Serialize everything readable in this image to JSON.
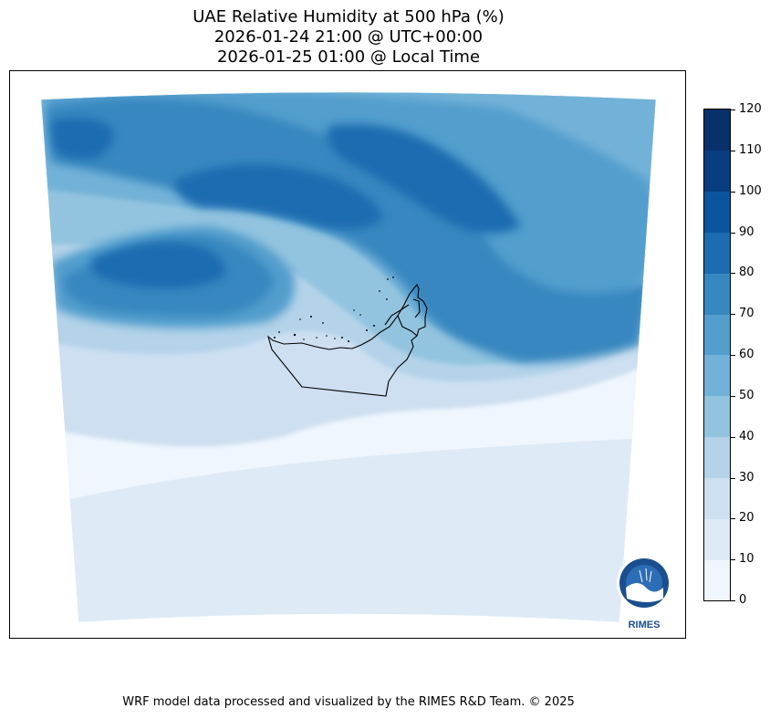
{
  "title": {
    "line1": "UAE Relative Humidity at 500 hPa (%)",
    "line2": "2026-01-24 21:00 @ UTC+00:00",
    "line3": "2026-01-25 01:00 @ Local Time"
  },
  "colorbar": {
    "levels": [
      0,
      10,
      20,
      30,
      40,
      50,
      60,
      70,
      80,
      90,
      100,
      110,
      120
    ],
    "colors": [
      "#f0f6fd",
      "#deebf7",
      "#cddff1",
      "#b4d3e9",
      "#93c4df",
      "#73b2d8",
      "#539ecd",
      "#3787c0",
      "#1d6cb1",
      "#0b559f",
      "#083d7f",
      "#08306b"
    ]
  },
  "logo": {
    "text": "RIMES"
  },
  "footer": "WRF model data processed and visualized by the RIMES R&D Team. © 2025"
}
